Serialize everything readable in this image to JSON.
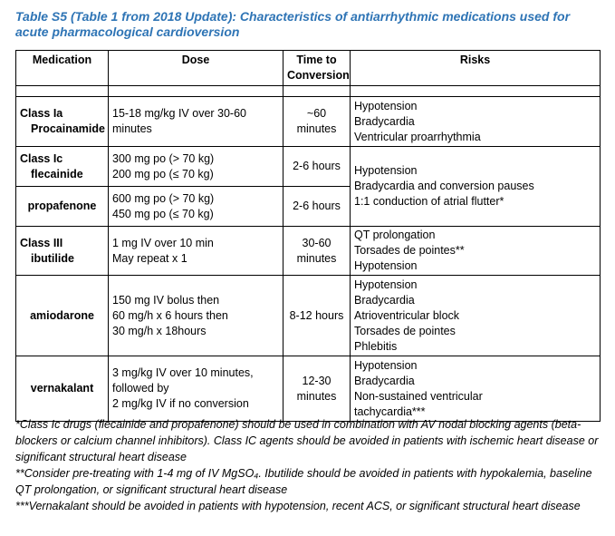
{
  "title": "Table S5 (Table 1 from 2018 Update): Characteristics of antiarrhythmic medications used for acute pharmacological cardioversion",
  "headers": {
    "medication": "Medication",
    "dose": "Dose",
    "time_line1": "Time to",
    "time_line2": "Conversion",
    "risks": "Risks"
  },
  "rows": {
    "procainamide": {
      "class": "Class Ia",
      "name": "Procainamide",
      "dose": [
        "15-18 mg/kg IV over 30-60",
        "minutes"
      ],
      "time": [
        "~60",
        "minutes"
      ],
      "risks": [
        "Hypotension",
        "Bradycardia",
        "Ventricular proarrhythmia"
      ]
    },
    "flecainide": {
      "class": "Class Ic",
      "name": "flecainide",
      "dose": [
        "300 mg po (> 70 kg)",
        "200 mg po (≤ 70 kg)"
      ],
      "time": "2-6 hours"
    },
    "propafenone": {
      "name": "propafenone",
      "dose": [
        "600 mg po (> 70 kg)",
        "450 mg po (≤ 70 kg)"
      ],
      "time": "2-6 hours"
    },
    "class_ic_risks": [
      "Hypotension",
      "Bradycardia and conversion pauses",
      "1:1 conduction of atrial flutter*"
    ],
    "ibutilide": {
      "class": "Class III",
      "name": "ibutilide",
      "dose": [
        "1 mg IV over 10 min",
        "May repeat x 1"
      ],
      "time": [
        "30-60",
        "minutes"
      ],
      "risks": [
        "QT prolongation",
        "Torsades de pointes**",
        "Hypotension"
      ]
    },
    "amiodarone": {
      "name": "amiodarone",
      "dose": [
        "150 mg IV bolus then",
        "60 mg/h x 6 hours then",
        "30 mg/h x 18hours"
      ],
      "time": "8-12 hours",
      "risks": [
        "Hypotension",
        "Bradycardia",
        "Atrioventricular block",
        "Torsades de pointes",
        "Phlebitis"
      ]
    },
    "vernakalant": {
      "name": "vernakalant",
      "dose": [
        "3 mg/kg IV over 10 minutes,",
        "followed by",
        "2 mg/kg IV if no conversion"
      ],
      "time": [
        "12-30",
        "minutes"
      ],
      "risks": [
        "Hypotension",
        "Bradycardia",
        "Non-sustained ventricular",
        "tachycardia***"
      ]
    }
  },
  "notes": [
    "*Class Ic drugs (flecainide and propafenone) should be used in combination with AV nodal blocking agents (beta-blockers or calcium channel inhibitors). Class IC agents should be avoided in patients with ischemic heart disease or significant structural heart disease",
    "**Consider pre-treating with 1-4 mg of IV MgSO₄. Ibutilide should be avoided in patients with hypokalemia, baseline QT prolongation, or significant structural heart disease",
    "***Vernakalant should be avoided in patients with hypotension, recent ACS, or significant structural heart disease"
  ]
}
